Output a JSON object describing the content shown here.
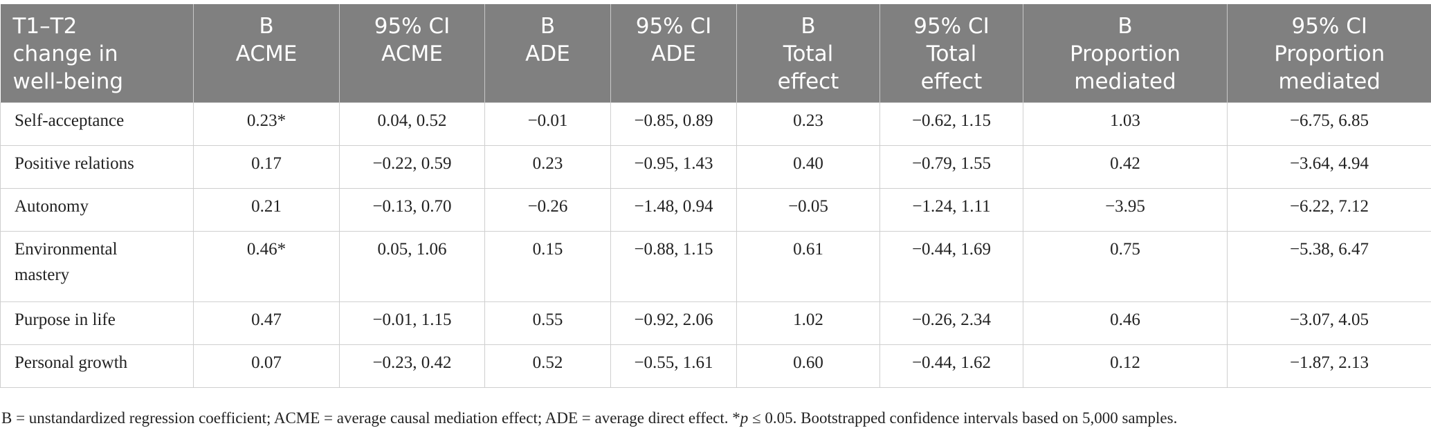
{
  "header": {
    "columns": [
      [
        "T1–T2",
        "change in",
        "well-being"
      ],
      [
        "B",
        "ACME"
      ],
      [
        "95% CI",
        "ACME"
      ],
      [
        "B",
        "ADE"
      ],
      [
        "95% CI",
        "ADE"
      ],
      [
        "B",
        "Total",
        "effect"
      ],
      [
        "95% CI",
        "Total",
        "effect"
      ],
      [
        "B",
        "Proportion",
        "mediated"
      ],
      [
        "95% CI",
        "Proportion",
        "mediated"
      ]
    ]
  },
  "rows": [
    {
      "label": [
        "Self-acceptance"
      ],
      "values": [
        "0.23*",
        "0.04, 0.52",
        "−0.01",
        "−0.85, 0.89",
        "0.23",
        "−0.62, 1.15",
        "1.03",
        "−6.75, 6.85"
      ]
    },
    {
      "label": [
        "Positive relations"
      ],
      "values": [
        "0.17",
        "−0.22, 0.59",
        "0.23",
        "−0.95, 1.43",
        "0.40",
        "−0.79, 1.55",
        "0.42",
        "−3.64, 4.94"
      ]
    },
    {
      "label": [
        "Autonomy"
      ],
      "values": [
        "0.21",
        "−0.13, 0.70",
        "−0.26",
        "−1.48, 0.94",
        "−0.05",
        "−1.24, 1.11",
        "−3.95",
        "−6.22, 7.12"
      ]
    },
    {
      "label": [
        "Environmental",
        "mastery"
      ],
      "values": [
        "0.46*",
        "0.05, 1.06",
        "0.15",
        "−0.88, 1.15",
        "0.61",
        "−0.44, 1.69",
        "0.75",
        "−5.38, 6.47"
      ]
    },
    {
      "label": [
        "Purpose in life"
      ],
      "values": [
        "0.47",
        "−0.01, 1.15",
        "0.55",
        "−0.92, 2.06",
        "1.02",
        "−0.26, 2.34",
        "0.46",
        "−3.07, 4.05"
      ]
    },
    {
      "label": [
        "Personal growth"
      ],
      "values": [
        "0.07",
        "−0.23, 0.42",
        "0.52",
        "−0.55, 1.61",
        "0.60",
        "−0.44, 1.62",
        "0.12",
        "−1.87, 2.13"
      ]
    }
  ],
  "footnote": {
    "part1": "B = unstandardized regression coefficient; ACME = average causal mediation effect; ADE = average direct effect. *",
    "p_symbol": "p",
    "part2": " ≤ 0.05. Bootstrapped confidence intervals based on 5,000 samples."
  }
}
